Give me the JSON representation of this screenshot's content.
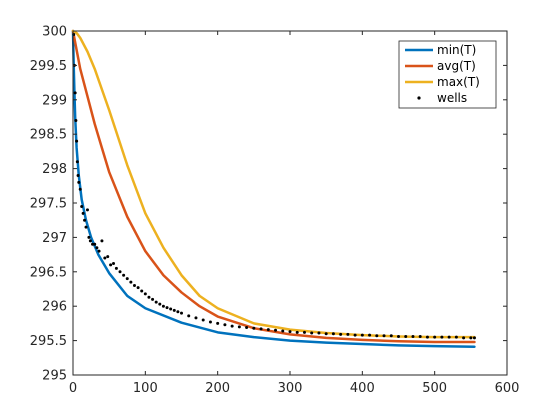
{
  "chart_data": {
    "type": "line",
    "title": "",
    "xlabel": "",
    "ylabel": "",
    "xlim": [
      0,
      600
    ],
    "ylim": [
      295,
      300
    ],
    "xticks": [
      0,
      100,
      200,
      300,
      400,
      500,
      600
    ],
    "yticks": [
      295,
      295.5,
      296,
      296.5,
      297,
      297.5,
      298,
      298.5,
      299,
      299.5,
      300
    ],
    "ytick_labels": [
      "295",
      "295.5",
      "296",
      "296.5",
      "297",
      "297.5",
      "298",
      "298.5",
      "299",
      "299.5",
      "300"
    ],
    "grid": false,
    "legend_position": "top-right",
    "series": [
      {
        "name": "min(T)",
        "kind": "line",
        "color": "#0072BD",
        "x": [
          0,
          1,
          2,
          3,
          5,
          8,
          12,
          18,
          25,
          35,
          50,
          75,
          100,
          150,
          200,
          250,
          300,
          350,
          400,
          450,
          500,
          555
        ],
        "y": [
          300,
          299.5,
          299.1,
          298.75,
          298.3,
          297.9,
          297.55,
          297.25,
          297.0,
          296.75,
          296.48,
          296.15,
          295.97,
          295.76,
          295.62,
          295.55,
          295.5,
          295.47,
          295.45,
          295.43,
          295.42,
          295.41
        ]
      },
      {
        "name": "avg(T)",
        "kind": "line",
        "color": "#D95319",
        "x": [
          0,
          10,
          20,
          30,
          40,
          50,
          75,
          100,
          125,
          150,
          175,
          200,
          250,
          300,
          350,
          400,
          450,
          500,
          555
        ],
        "y": [
          300,
          299.45,
          299.05,
          298.65,
          298.3,
          297.95,
          297.3,
          296.8,
          296.45,
          296.2,
          296.0,
          295.85,
          295.68,
          295.59,
          295.54,
          295.51,
          295.49,
          295.48,
          295.48
        ]
      },
      {
        "name": "max(T)",
        "kind": "line",
        "color": "#EDB120",
        "x": [
          0,
          5,
          10,
          20,
          30,
          40,
          50,
          75,
          100,
          125,
          150,
          175,
          200,
          250,
          300,
          350,
          400,
          450,
          500,
          555
        ],
        "y": [
          300,
          299.97,
          299.9,
          299.7,
          299.45,
          299.15,
          298.85,
          298.05,
          297.35,
          296.85,
          296.45,
          296.15,
          295.97,
          295.75,
          295.66,
          295.61,
          295.58,
          295.56,
          295.55,
          295.55
        ]
      },
      {
        "name": "wells",
        "kind": "points",
        "color": "#000000",
        "x": [
          1,
          2,
          3,
          4,
          5,
          6,
          7,
          8,
          10,
          12,
          14,
          16,
          18,
          20,
          22,
          24,
          27,
          30,
          33,
          36,
          40,
          44,
          48,
          52,
          56,
          60,
          65,
          70,
          75,
          80,
          85,
          90,
          95,
          100,
          105,
          110,
          115,
          120,
          125,
          130,
          135,
          140,
          145,
          150,
          160,
          170,
          180,
          190,
          200,
          210,
          220,
          230,
          240,
          250,
          260,
          270,
          280,
          290,
          300,
          310,
          320,
          330,
          340,
          350,
          360,
          370,
          380,
          390,
          400,
          410,
          420,
          430,
          440,
          450,
          460,
          470,
          480,
          490,
          500,
          510,
          520,
          530,
          540,
          550,
          555
        ],
        "y": [
          299.95,
          299.5,
          299.1,
          298.7,
          298.4,
          298.1,
          297.9,
          297.8,
          297.7,
          297.45,
          297.35,
          297.25,
          297.15,
          297.4,
          297.0,
          296.95,
          296.9,
          296.9,
          296.85,
          296.8,
          296.95,
          296.7,
          296.72,
          296.6,
          296.62,
          296.55,
          296.5,
          296.45,
          296.4,
          296.35,
          296.3,
          296.27,
          296.22,
          296.18,
          296.13,
          296.1,
          296.06,
          296.03,
          296.0,
          295.98,
          295.96,
          295.94,
          295.92,
          295.9,
          295.86,
          295.83,
          295.8,
          295.77,
          295.75,
          295.73,
          295.71,
          295.7,
          295.69,
          295.68,
          295.67,
          295.66,
          295.65,
          295.64,
          295.63,
          295.62,
          295.62,
          295.61,
          295.61,
          295.6,
          295.6,
          295.59,
          295.59,
          295.58,
          295.58,
          295.58,
          295.57,
          295.57,
          295.57,
          295.56,
          295.56,
          295.56,
          295.56,
          295.55,
          295.55,
          295.55,
          295.55,
          295.55,
          295.54,
          295.54,
          295.54
        ]
      }
    ]
  }
}
